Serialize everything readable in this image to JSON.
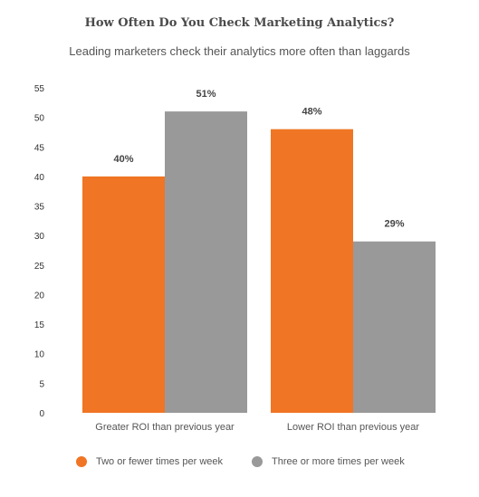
{
  "title": "How Often Do You Check Marketing Analytics?",
  "subtitle": "Leading marketers check their analytics more often than laggards",
  "colors": {
    "orange": "#f07524",
    "gray": "#999999",
    "tick_text": "#333333",
    "label_text": "#444444"
  },
  "chart_data": {
    "type": "bar",
    "title": "How Often Do You Check Marketing Analytics?",
    "subtitle": "Leading marketers check their analytics more often than laggards",
    "xlabel": "",
    "ylabel": "",
    "ylim": [
      0,
      55
    ],
    "yticks": [
      0,
      5,
      10,
      15,
      20,
      25,
      30,
      35,
      40,
      45,
      50,
      55
    ],
    "grid": false,
    "legend_position": "bottom",
    "categories": [
      "Greater ROI than previous year",
      "Lower ROI than previous year"
    ],
    "series": [
      {
        "name": "Two or fewer times per week",
        "color": "#f07524",
        "values": [
          40,
          48
        ],
        "labels": [
          "40%",
          "48%"
        ]
      },
      {
        "name": "Three or more times per week",
        "color": "#999999",
        "values": [
          51,
          29
        ],
        "labels": [
          "51%",
          "29%"
        ]
      }
    ]
  }
}
